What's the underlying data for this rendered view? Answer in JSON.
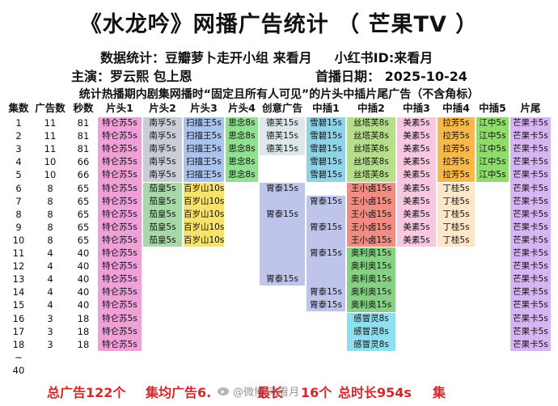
{
  "header": {
    "title": "《水龙吟》网播广告统计 （ 芒果TV ）",
    "stats_by": "数据统计：豆瓣萝卜走开小组 来看月",
    "xiaohongshu": "小红书ID:来看月",
    "cast": "主演：罗云熙 包上恩",
    "premiere_date": "首播日期： 2025-10-24",
    "note": "统计热播期内剧集网播时“固定且所有人可见”的片头中插片尾广告（不含角标）"
  },
  "columns": [
    "集数",
    "广告数",
    "秒数",
    "片头1",
    "片头2",
    "片头3",
    "片头4",
    "创意广告",
    "中插1",
    "中插2",
    "中插3",
    "中插4",
    "中插5",
    "片尾"
  ],
  "rows": [
    [
      "1",
      "11",
      "81"
    ],
    [
      "2",
      "11",
      "81"
    ],
    [
      "3",
      "11",
      "81"
    ],
    [
      "4",
      "10",
      "66"
    ],
    [
      "5",
      "10",
      "66"
    ],
    [
      "6",
      "8",
      "65"
    ],
    [
      "7",
      "8",
      "65"
    ],
    [
      "8",
      "8",
      "65"
    ],
    [
      "9",
      "8",
      "65"
    ],
    [
      "10",
      "8",
      "65"
    ],
    [
      "11",
      "4",
      "40"
    ],
    [
      "12",
      "4",
      "40"
    ],
    [
      "13",
      "4",
      "40"
    ],
    [
      "14",
      "4",
      "40"
    ],
    [
      "15",
      "4",
      "40"
    ],
    [
      "16",
      "3",
      "18"
    ],
    [
      "17",
      "3",
      "18"
    ],
    [
      "18",
      "3",
      "18"
    ],
    [
      "~",
      "",
      ""
    ],
    [
      "40",
      "",
      ""
    ]
  ],
  "ad_bars": [
    {
      "col": "片头1",
      "from": 1,
      "to": 18,
      "color": "#f0a0d8",
      "labels": [
        "特仑苏5s",
        "特仑苏5s",
        "特仑苏5s",
        "特仑苏5s",
        "特仑苏5s",
        "特仑苏5s",
        "特仑苏5s",
        "特仑苏5s",
        "特仑苏5s",
        "特仑苏5s",
        "特仑苏5s",
        "特仑苏5s",
        "特仑苏5s",
        "特仑苏5s",
        "特仑苏5s",
        "特仑苏5s",
        "特仑苏5s",
        "特仑苏5s"
      ]
    },
    {
      "col": "片头2",
      "from": 1,
      "to": 5,
      "color": "#c9cdd6",
      "labels": [
        "南孚5s",
        "南孚5s",
        "南孚5s",
        "南孚5s",
        "南孚5s"
      ]
    },
    {
      "col": "片头2",
      "from": 6,
      "to": 10,
      "color": "#a7d8a7",
      "labels": [
        "茄皇5s",
        "茄皇5s",
        "茄皇5s",
        "茄皇5s",
        "茄皇5s"
      ]
    },
    {
      "col": "片头3",
      "from": 1,
      "to": 5,
      "color": "#a9c4ee",
      "labels": [
        "扫描王5s",
        "扫描王5s",
        "扫描王5s",
        "扫描王5s",
        "扫描王5s"
      ]
    },
    {
      "col": "片头3",
      "from": 6,
      "to": 10,
      "color": "#f7e36b",
      "labels": [
        "百岁山10s",
        "百岁山10s",
        "百岁山10s",
        "百岁山10s",
        "百岁山10s"
      ]
    },
    {
      "col": "片头4",
      "from": 1,
      "to": 5,
      "color": "#8fe08f",
      "labels": [
        "思念8s",
        "思念8s",
        "思念8s",
        "思念8s",
        "思念8s"
      ]
    },
    {
      "col": "创意广告",
      "from": 1,
      "to": 3,
      "color": "#dde8ea",
      "labels": [
        "德芙15s",
        "德芙15s",
        "德芙15s"
      ]
    },
    {
      "col": "创意广告",
      "from": 6,
      "to": 13,
      "color": "#bfc5ea",
      "labels": [
        "",
        "胃泰15s",
        "",
        "胃泰15s",
        "",
        "",
        "",
        "胃泰15s"
      ],
      "label_rows": [
        6,
        8,
        13
      ]
    },
    {
      "col": "中插1",
      "from": 1,
      "to": 5,
      "color": "#8ed3e6",
      "labels": [
        "雪碧15s",
        "雪碧15s",
        "雪碧15s",
        "雪碧15s",
        "雪碧15s"
      ]
    },
    {
      "col": "中插1",
      "from": 7,
      "to": 15,
      "color": "#bfc5ea",
      "labels": [
        "胃泰15s",
        "胃泰15s",
        "胃泰15s",
        "胃泰15s",
        "胃泰15s"
      ],
      "label_rows": [
        7,
        9,
        11,
        14,
        15
      ]
    },
    {
      "col": "中插2",
      "from": 1,
      "to": 5,
      "color": "#b6df8c",
      "labels": [
        "丝塔芙8s",
        "丝塔芙8s",
        "丝塔芙8s",
        "丝塔芙8s",
        "丝塔芙8s"
      ]
    },
    {
      "col": "中插2",
      "from": 6,
      "to": 10,
      "color": "#f08c82",
      "labels": [
        "王小卤15s",
        "王小卤15s",
        "王小卤15s",
        "王小卤15s",
        "王小卤15s"
      ]
    },
    {
      "col": "中插2",
      "from": 11,
      "to": 15,
      "color": "#86d186",
      "labels": [
        "奥利奥15s",
        "奥利奥15s",
        "奥利奥15s",
        "奥利奥15s",
        "奥利奥15s"
      ]
    },
    {
      "col": "中插2",
      "from": 16,
      "to": 18,
      "color": "#8ee0f0",
      "labels": [
        "感冒灵8s",
        "感冒灵8s",
        "感冒灵8s"
      ]
    },
    {
      "col": "中插3",
      "from": 1,
      "to": 10,
      "color": "#f8c8e0",
      "labels": [
        "美素5s",
        "美素5s",
        "美素5s",
        "美素5s",
        "美素5s",
        "美素5s",
        "美素5s",
        "美素5s",
        "美素5s",
        "美素5s"
      ]
    },
    {
      "col": "中插4",
      "from": 1,
      "to": 5,
      "color": "#f9b84a",
      "labels": [
        "拉芳5s",
        "拉芳5s",
        "拉芳5s",
        "拉芳5s",
        "拉芳5s"
      ]
    },
    {
      "col": "中插4",
      "from": 6,
      "to": 10,
      "color": "#fde7c8",
      "labels": [
        "丁桂5s",
        "丁桂5s",
        "丁桂5s",
        "丁桂5s",
        "丁桂5s"
      ]
    },
    {
      "col": "中插5",
      "from": 1,
      "to": 5,
      "color": "#8edc6a",
      "labels": [
        "江中5s",
        "江中5s",
        "江中5s",
        "江中5s",
        "江中5s"
      ]
    },
    {
      "col": "片尾",
      "from": 1,
      "to": 18,
      "color": "#d7b4f2",
      "labels": [
        "芒果卡5s",
        "芒果卡5s",
        "芒果卡5s",
        "芒果卡5s",
        "芒果卡5s",
        "芒果卡5s",
        "芒果卡5s",
        "芒果卡5s",
        "芒果卡5s",
        "芒果卡5s",
        "芒果卡5s",
        "芒果卡5s",
        "芒果卡5s",
        "芒果卡5s",
        "芒果卡5s",
        "芒果卡5s",
        "芒果卡5s",
        "芒果卡5s"
      ]
    }
  ],
  "footer": {
    "total_ads": "总广告122个",
    "avg_ads": "集均广告6.",
    "longest": "最长",
    "longest_val": "16个",
    "total_duration": "总时长954s",
    "tail": "集"
  },
  "watermark": "@微博 来看月"
}
